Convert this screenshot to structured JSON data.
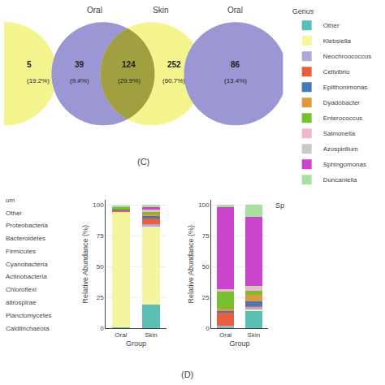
{
  "chart_data": [
    {
      "type": "venn",
      "title": "(C)",
      "series": [
        {
          "color": "#F5F590",
          "values": [
            5
          ],
          "share_labels": [
            "(19.2%)"
          ]
        },
        {
          "name": "Oral",
          "color": "#9B96D4",
          "values": [
            39
          ],
          "share_labels": [
            "(9.4%)"
          ]
        },
        {
          "name": "Skin",
          "color": "#F5F590",
          "values": [
            252
          ],
          "share_labels": [
            "(60.7%)"
          ]
        },
        {
          "name": "Oral",
          "color": "#9B96D4",
          "values": [
            86
          ],
          "share_labels": [
            "(13.4%)"
          ]
        }
      ],
      "intersection": {
        "color": "#A0A040",
        "values": [
          124
        ],
        "share_labels": [
          "(29.9%)"
        ]
      }
    },
    {
      "type": "bar",
      "stacked": true,
      "title": "(D)",
      "categories": [
        "Oral",
        "Skin"
      ],
      "xlabel": "Group",
      "ylabel": "Relative Abundance (%)",
      "ylim": [
        0,
        104
      ],
      "yticks": [
        0,
        25,
        50,
        75,
        100
      ],
      "grid": true,
      "legend": "right",
      "legend_title": "Genus",
      "annotations": [
        "um",
        "Other",
        "Proteobacteria",
        "Bacteroidetes",
        "Firmicutes",
        "Cyanobacteria",
        "Actinobacteria",
        "Chloroflexi",
        "altrospirae",
        "Planctomycetes",
        "Calditrichaeota"
      ],
      "series": [
        {
          "name": "Other",
          "color": "#5BBFB5",
          "values": [
            0.5,
            19.0
          ]
        },
        {
          "name": "Klebsiella",
          "color": "#F5F5A0",
          "values": [
            93.5,
            63.5
          ]
        },
        {
          "name": "Neochroococcus",
          "color": "#B0A8D8",
          "values": [
            0.5,
            2.0
          ]
        },
        {
          "name": "Cellvibrio",
          "color": "#E86040",
          "values": [
            1.0,
            4.5
          ]
        },
        {
          "name": "Epilthonimonas",
          "color": "#4878B8",
          "values": [
            0.5,
            2.0
          ]
        },
        {
          "name": "Dyadobacter",
          "color": "#E09840",
          "values": [
            0.5,
            1.5
          ]
        },
        {
          "name": "Enterococcus",
          "color": "#78C030",
          "values": [
            1.5,
            1.5
          ]
        },
        {
          "name": "Salmonella",
          "color": "#F0B8C8",
          "values": [
            0.5,
            1.5
          ]
        },
        {
          "name": "Azospirillum",
          "color": "#C8C8C8",
          "values": [
            0.5,
            1.0
          ]
        },
        {
          "name": "Sphingomonas",
          "color": "#CC44CC",
          "values": [
            0.0,
            1.5
          ]
        },
        {
          "name": "Duncaniella",
          "color": "#A8E0A0",
          "values": [
            0.5,
            2.0
          ]
        }
      ]
    },
    {
      "type": "bar",
      "stacked": true,
      "categories": [
        "Oral",
        "Skin"
      ],
      "xlabel": "Group",
      "ylabel": "Relative Abundance (%)",
      "ylim": [
        0,
        104
      ],
      "yticks": [
        0,
        25,
        50,
        75,
        100
      ],
      "grid": true,
      "annotations": [
        "Sp"
      ],
      "series": [
        {
          "name": "Other",
          "color": "#5BBFB5",
          "values": [
            0.5,
            14.0
          ]
        },
        {
          "name": "Klebsiella",
          "color": "#F5F5A0",
          "values": [
            0.5,
            1.0
          ]
        },
        {
          "name": "Neochroococcus",
          "color": "#B0A8D8",
          "values": [
            1.0,
            2.0
          ]
        },
        {
          "name": "Cellvibrio",
          "color": "#E86040",
          "values": [
            10.5,
            1.0
          ]
        },
        {
          "name": "Epilthonimonas",
          "color": "#4878B8",
          "values": [
            1.5,
            3.5
          ]
        },
        {
          "name": "Dyadobacter",
          "color": "#E09840",
          "values": [
            2.0,
            5.5
          ]
        },
        {
          "name": "Enterococcus",
          "color": "#78C030",
          "values": [
            13.5,
            3.5
          ]
        },
        {
          "name": "Salmonella",
          "color": "#F0B8C8",
          "values": [
            1.5,
            2.5
          ]
        },
        {
          "name": "Azospirillum",
          "color": "#C8C8C8",
          "values": [
            0.5,
            1.0
          ]
        },
        {
          "name": "Sphingomonas",
          "color": "#CC44CC",
          "values": [
            66.5,
            56.5
          ]
        },
        {
          "name": "Duncaniella",
          "color": "#A8E0A0",
          "values": [
            2.0,
            9.5
          ]
        }
      ]
    }
  ]
}
